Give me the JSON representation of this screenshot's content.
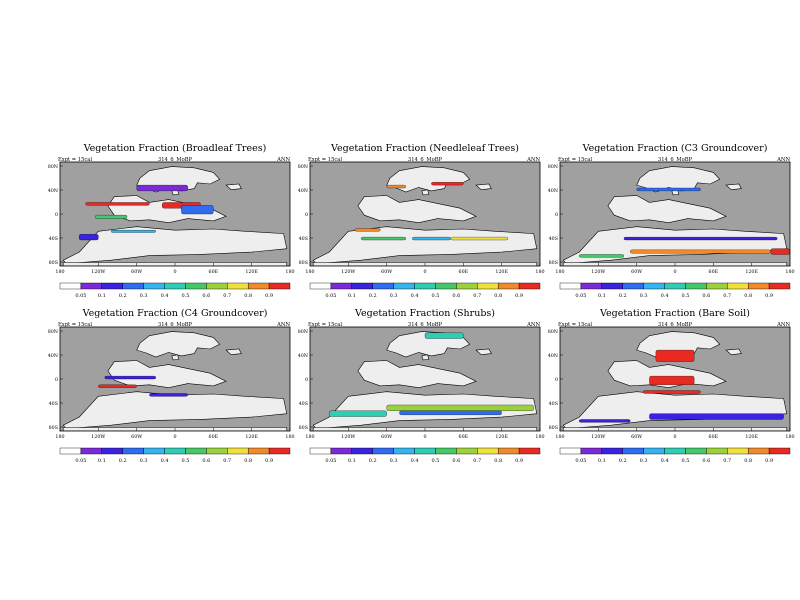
{
  "figure": {
    "expt_label": "Expt = 15cal",
    "run_id": "314_6_MoBP",
    "season": "ANN"
  },
  "colors": {
    "ocean": "#a0a0a0",
    "land": "#eeeeee",
    "scale": [
      "#ffffff",
      "#7a2ad8",
      "#3a22e0",
      "#2f6cf2",
      "#34b4f0",
      "#2ecdb4",
      "#44c86a",
      "#9bd23c",
      "#f0e13a",
      "#f08a2a",
      "#e82a22"
    ]
  },
  "chart_data": [
    {
      "type": "heatmap",
      "title": "Vegetation Fraction (Broadleaf Trees)",
      "expt_label": "Expt = 15cal",
      "run_id": "314_6_MoBP",
      "season": "ANN",
      "lat_ticks": [
        "80N",
        "40N",
        "0",
        "40S",
        "80S"
      ],
      "lon_ticks": [
        "180",
        "120W",
        "60W",
        "0",
        "60E",
        "120E",
        "180"
      ],
      "colorbar_ticks": [
        "0.05",
        "0.1",
        "0.2",
        "0.3",
        "0.4",
        "0.5",
        "0.6",
        "0.7",
        "0.8",
        "0.9"
      ],
      "xlim": [
        -180,
        180
      ],
      "ylim": [
        -90,
        90
      ],
      "regions": [
        {
          "lon": [
            -140,
            -40
          ],
          "lat": [
            20,
            15
          ],
          "value": 0.93
        },
        {
          "lon": [
            -125,
            -75
          ],
          "lat": [
            -2,
            -8
          ],
          "value": 0.5
        },
        {
          "lon": [
            -100,
            -30
          ],
          "lat": [
            -28,
            -32
          ],
          "value": 0.3
        },
        {
          "lon": [
            -150,
            -120
          ],
          "lat": [
            -45,
            -35
          ],
          "value": 0.15
        },
        {
          "lon": [
            -60,
            20
          ],
          "lat": [
            50,
            40
          ],
          "value": 0.08
        },
        {
          "lon": [
            -20,
            40
          ],
          "lat": [
            10,
            20
          ],
          "value": 0.9
        },
        {
          "lon": [
            10,
            60
          ],
          "lat": [
            0,
            15
          ],
          "value": 0.2
        }
      ]
    },
    {
      "type": "heatmap",
      "title": "Vegetation Fraction (Needleleaf Trees)",
      "expt_label": "Expt = 15cal",
      "run_id": "314_6_MoBP",
      "season": "ANN",
      "lat_ticks": [
        "80N",
        "40N",
        "0",
        "40S",
        "80S"
      ],
      "lon_ticks": [
        "180",
        "120W",
        "60W",
        "0",
        "60E",
        "120E",
        "180"
      ],
      "colorbar_ticks": [
        "0.05",
        "0.1",
        "0.2",
        "0.3",
        "0.4",
        "0.5",
        "0.6",
        "0.7",
        "0.8",
        "0.9"
      ],
      "xlim": [
        -180,
        180
      ],
      "ylim": [
        -90,
        90
      ],
      "regions": [
        {
          "lon": [
            -110,
            -70
          ],
          "lat": [
            -25,
            -30
          ],
          "value": 0.85
        },
        {
          "lon": [
            -100,
            -30
          ],
          "lat": [
            -40,
            -45
          ],
          "value": 0.5
        },
        {
          "lon": [
            -20,
            40
          ],
          "lat": [
            -40,
            -45
          ],
          "value": 0.3
        },
        {
          "lon": [
            40,
            130
          ],
          "lat": [
            -40,
            -45
          ],
          "value": 0.75
        },
        {
          "lon": [
            -60,
            -30
          ],
          "lat": [
            50,
            45
          ],
          "value": 0.8
        },
        {
          "lon": [
            10,
            60
          ],
          "lat": [
            50,
            55
          ],
          "value": 0.9
        }
      ]
    },
    {
      "type": "heatmap",
      "title": "Vegetation Fraction (C3 Groundcover)",
      "expt_label": "Expt = 15cal",
      "run_id": "314_6_MoBP",
      "season": "ANN",
      "lat_ticks": [
        "80N",
        "40N",
        "0",
        "40S",
        "80S"
      ],
      "lon_ticks": [
        "180",
        "120W",
        "60W",
        "0",
        "60E",
        "120E",
        "180"
      ],
      "colorbar_ticks": [
        "0.05",
        "0.1",
        "0.2",
        "0.3",
        "0.4",
        "0.5",
        "0.6",
        "0.7",
        "0.8",
        "0.9"
      ],
      "xlim": [
        -180,
        180
      ],
      "ylim": [
        -90,
        90
      ],
      "regions": [
        {
          "lon": [
            -60,
            40
          ],
          "lat": [
            40,
            45
          ],
          "value": 0.2
        },
        {
          "lon": [
            -80,
            160
          ],
          "lat": [
            -40,
            -45
          ],
          "value": 0.15
        },
        {
          "lon": [
            -150,
            -80
          ],
          "lat": [
            -70,
            -75
          ],
          "value": 0.5
        },
        {
          "lon": [
            -70,
            150
          ],
          "lat": [
            -62,
            -68
          ],
          "value": 0.8
        },
        {
          "lon": [
            150,
            180
          ],
          "lat": [
            -60,
            -70
          ],
          "value": 0.95
        }
      ]
    },
    {
      "type": "heatmap",
      "title": "Vegetation Fraction (C4 Groundcover)",
      "expt_label": "Expt = 15cal",
      "run_id": "314_6_MoBP",
      "season": "ANN",
      "lat_ticks": [
        "80N",
        "40N",
        "0",
        "40S",
        "80S"
      ],
      "lon_ticks": [
        "180",
        "120W",
        "60W",
        "0",
        "60E",
        "120E",
        "180"
      ],
      "colorbar_ticks": [
        "0.05",
        "0.1",
        "0.2",
        "0.3",
        "0.4",
        "0.5",
        "0.6",
        "0.7",
        "0.8",
        "0.9"
      ],
      "xlim": [
        -180,
        180
      ],
      "ylim": [
        -90,
        90
      ],
      "regions": [
        {
          "lon": [
            -110,
            -30
          ],
          "lat": [
            5,
            0
          ],
          "value": 0.15
        },
        {
          "lon": [
            -120,
            -60
          ],
          "lat": [
            -10,
            -15
          ],
          "value": 0.9
        },
        {
          "lon": [
            -40,
            20
          ],
          "lat": [
            -25,
            -30
          ],
          "value": 0.1
        }
      ]
    },
    {
      "type": "heatmap",
      "title": "Vegetation Fraction (Shrubs)",
      "expt_label": "Expt = 15cal",
      "run_id": "314_6_MoBP",
      "season": "ANN",
      "lat_ticks": [
        "80N",
        "40N",
        "0",
        "40S",
        "80S"
      ],
      "lon_ticks": [
        "180",
        "120W",
        "60W",
        "0",
        "60E",
        "120E",
        "180"
      ],
      "colorbar_ticks": [
        "0.05",
        "0.1",
        "0.2",
        "0.3",
        "0.4",
        "0.5",
        "0.6",
        "0.7",
        "0.8",
        "0.9"
      ],
      "xlim": [
        -180,
        180
      ],
      "ylim": [
        -90,
        90
      ],
      "regions": [
        {
          "lon": [
            0,
            60
          ],
          "lat": [
            80,
            70
          ],
          "value": 0.45
        },
        {
          "lon": [
            -150,
            -60
          ],
          "lat": [
            -55,
            -65
          ],
          "value": 0.45
        },
        {
          "lon": [
            -60,
            170
          ],
          "lat": [
            -45,
            -55
          ],
          "value": 0.6
        },
        {
          "lon": [
            -40,
            120
          ],
          "lat": [
            -55,
            -62
          ],
          "value": 0.2
        }
      ]
    },
    {
      "type": "heatmap",
      "title": "Vegetation Fraction (Bare Soil)",
      "expt_label": "Expt = 15cal",
      "run_id": "314_6_MoBP",
      "season": "ANN",
      "lat_ticks": [
        "80N",
        "40N",
        "0",
        "40S",
        "80S"
      ],
      "lon_ticks": [
        "180",
        "120W",
        "60W",
        "0",
        "60E",
        "120E",
        "180"
      ],
      "colorbar_ticks": [
        "0.05",
        "0.1",
        "0.2",
        "0.3",
        "0.4",
        "0.5",
        "0.6",
        "0.7",
        "0.8",
        "0.9"
      ],
      "xlim": [
        -180,
        180
      ],
      "ylim": [
        -90,
        90
      ],
      "regions": [
        {
          "lon": [
            -30,
            30
          ],
          "lat": [
            50,
            30
          ],
          "value": 0.95
        },
        {
          "lon": [
            -40,
            30
          ],
          "lat": [
            5,
            -10
          ],
          "value": 0.95
        },
        {
          "lon": [
            -50,
            40
          ],
          "lat": [
            -20,
            -25
          ],
          "value": 0.9
        },
        {
          "lon": [
            -40,
            170
          ],
          "lat": [
            -60,
            -70
          ],
          "value": 0.1
        },
        {
          "lon": [
            -150,
            -70
          ],
          "lat": [
            -70,
            -75
          ],
          "value": 0.1
        }
      ]
    }
  ]
}
